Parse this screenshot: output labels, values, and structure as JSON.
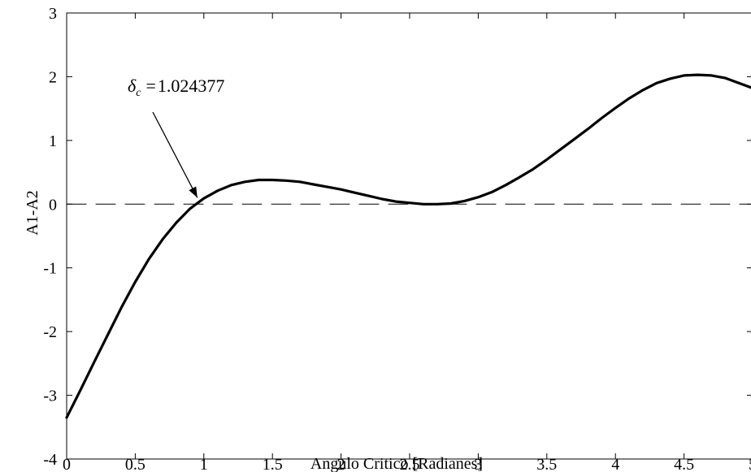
{
  "chart_data": {
    "type": "line",
    "title": "",
    "xlabel": "Angulo Critico [Radianes]",
    "ylabel": "A1-A2",
    "xlim": [
      0,
      5
    ],
    "ylim": [
      -4,
      3
    ],
    "x_ticks": [
      0,
      0.5,
      1,
      1.5,
      2,
      2.5,
      3,
      3.5,
      4,
      4.5,
      5
    ],
    "y_ticks": [
      -4,
      -3,
      -2,
      -1,
      0,
      1,
      2,
      3
    ],
    "x_tick_labels": [
      "0",
      "0.5",
      "1",
      "1.5",
      "2",
      "2.5",
      "3",
      "3.5",
      "4",
      "4.5",
      "5"
    ],
    "y_tick_labels": [
      "-4",
      "-3",
      "-2",
      "-1",
      "0",
      "1",
      "2",
      "3"
    ],
    "grid": false,
    "series": [
      {
        "color": "#000000",
        "style": "solid",
        "x": [
          0,
          0.1,
          0.2,
          0.3,
          0.4,
          0.5,
          0.6,
          0.7,
          0.8,
          0.9,
          1.0,
          1.1,
          1.2,
          1.3,
          1.4,
          1.5,
          1.6,
          1.7,
          1.8,
          1.9,
          2.0,
          2.1,
          2.2,
          2.3,
          2.4,
          2.5,
          2.6,
          2.7,
          2.8,
          2.9,
          3.0,
          3.1,
          3.2,
          3.3,
          3.4,
          3.5,
          3.6,
          3.7,
          3.8,
          3.9,
          4.0,
          4.1,
          4.2,
          4.3,
          4.4,
          4.5,
          4.6,
          4.7,
          4.8,
          4.9,
          5.0
        ],
        "values": [
          -3.35,
          -2.92,
          -2.48,
          -2.05,
          -1.62,
          -1.22,
          -0.86,
          -0.55,
          -0.29,
          -0.07,
          0.09,
          0.21,
          0.3,
          0.35,
          0.38,
          0.38,
          0.37,
          0.35,
          0.31,
          0.27,
          0.23,
          0.18,
          0.13,
          0.08,
          0.04,
          0.02,
          0.0,
          0.0,
          0.01,
          0.05,
          0.11,
          0.19,
          0.3,
          0.42,
          0.55,
          0.7,
          0.86,
          1.02,
          1.18,
          1.35,
          1.51,
          1.66,
          1.79,
          1.9,
          1.97,
          2.02,
          2.03,
          2.02,
          1.98,
          1.9,
          1.82
        ]
      },
      {
        "color": "#000000",
        "style": "dashed",
        "x": [
          0,
          5
        ],
        "values": [
          0,
          0
        ]
      }
    ],
    "annotations": [
      {
        "symbol": "δ",
        "subscript": "c",
        "equals": "=",
        "value": "1.024377",
        "arrow_to": [
          1.0,
          0.0
        ]
      }
    ]
  }
}
